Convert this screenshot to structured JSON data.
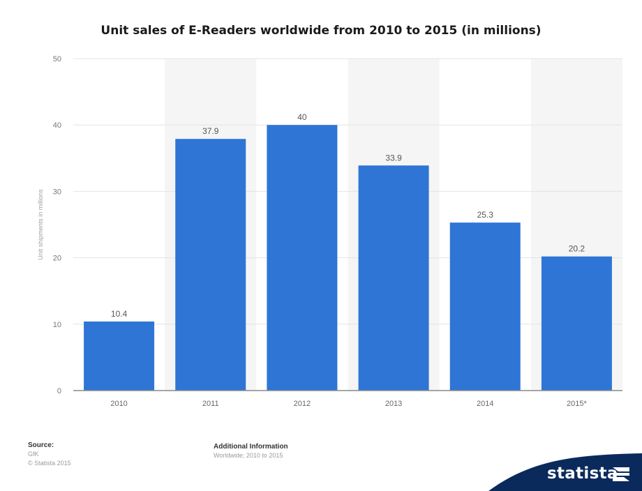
{
  "chart_data": {
    "type": "bar",
    "title": "Unit sales of E-Readers worldwide from 2010 to 2015 (in millions)",
    "ylabel": "Unit shipments in millions",
    "xlabel": "",
    "categories": [
      "2010",
      "2011",
      "2012",
      "2013",
      "2014",
      "2015*"
    ],
    "values": [
      10.4,
      37.9,
      40,
      33.9,
      25.3,
      20.2
    ],
    "value_labels": [
      "10.4",
      "37.9",
      "40",
      "33.9",
      "25.3",
      "20.2"
    ],
    "ylim": [
      0,
      50
    ],
    "yticks": [
      0,
      10,
      20,
      30,
      40,
      50
    ],
    "grid": true,
    "bar_color": "#2e75d6"
  },
  "footer": {
    "source_heading": "Source:",
    "source_lines": [
      "GfK",
      "© Statista 2015"
    ],
    "additional_heading": "Additional Information",
    "additional_text": "Worldwide; 2010 to 2015"
  },
  "branding": {
    "name": "statista",
    "logo_icon": "statista-logo-icon",
    "swoosh_color": "#0a2a5c"
  }
}
